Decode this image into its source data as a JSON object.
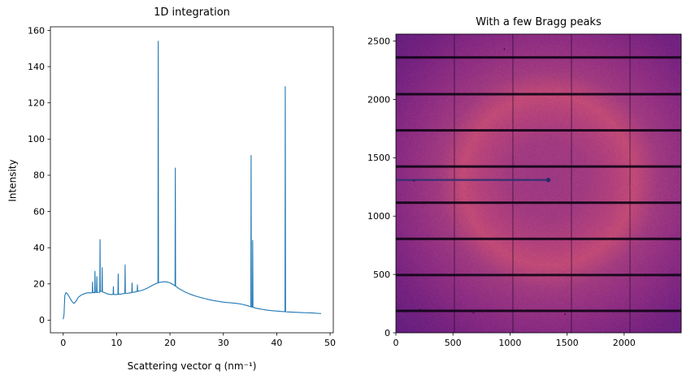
{
  "figure": {
    "background": "#ffffff"
  },
  "chart_data": [
    {
      "type": "line",
      "title": "1D integration",
      "xlabel": "Scattering vector q (nm⁻¹)",
      "ylabel": "Intensity",
      "xlim": [
        -2.4,
        50.6
      ],
      "ylim": [
        -7,
        162
      ],
      "xticks": [
        0,
        10,
        20,
        30,
        40,
        50
      ],
      "yticks": [
        0,
        20,
        40,
        60,
        80,
        100,
        120,
        140,
        160
      ],
      "grid": false,
      "line_color": "#1f77b4",
      "points": [
        [
          0.0,
          0.5
        ],
        [
          0.15,
          3
        ],
        [
          0.3,
          13.5
        ],
        [
          0.5,
          15.2
        ],
        [
          0.8,
          14.5
        ],
        [
          1.2,
          12.5
        ],
        [
          1.6,
          10.5
        ],
        [
          2.0,
          9.2
        ],
        [
          2.4,
          10.5
        ],
        [
          2.8,
          12.5
        ],
        [
          3.2,
          13.5
        ],
        [
          3.6,
          14.2
        ],
        [
          4.0,
          14.6
        ],
        [
          4.4,
          15.0
        ],
        [
          4.8,
          15.1
        ],
        [
          5.2,
          15.0
        ],
        [
          5.45,
          15.2
        ],
        [
          5.5,
          21
        ],
        [
          5.55,
          15.2
        ],
        [
          5.9,
          15.1
        ],
        [
          5.95,
          27
        ],
        [
          6.0,
          15.3
        ],
        [
          6.25,
          15.4
        ],
        [
          6.3,
          24
        ],
        [
          6.35,
          15.2
        ],
        [
          6.6,
          15.3
        ],
        [
          6.85,
          15.4
        ],
        [
          6.9,
          44.5
        ],
        [
          6.95,
          15.8
        ],
        [
          7.25,
          16.0
        ],
        [
          7.3,
          29
        ],
        [
          7.35,
          15.6
        ],
        [
          7.6,
          15.3
        ],
        [
          7.9,
          15.0
        ],
        [
          8.2,
          14.6
        ],
        [
          8.5,
          14.3
        ],
        [
          8.8,
          14.2
        ],
        [
          9.1,
          14.1
        ],
        [
          9.35,
          14.2
        ],
        [
          9.4,
          18.5
        ],
        [
          9.45,
          14.2
        ],
        [
          9.8,
          14.1
        ],
        [
          10.25,
          14.2
        ],
        [
          10.3,
          25.5
        ],
        [
          10.35,
          14.3
        ],
        [
          10.7,
          14.3
        ],
        [
          11.0,
          14.5
        ],
        [
          11.3,
          14.6
        ],
        [
          11.55,
          14.8
        ],
        [
          11.6,
          30.5
        ],
        [
          11.65,
          14.9
        ],
        [
          12.0,
          14.8
        ],
        [
          12.4,
          15.0
        ],
        [
          12.85,
          15.2
        ],
        [
          12.9,
          20.5
        ],
        [
          12.95,
          15.3
        ],
        [
          13.4,
          15.5
        ],
        [
          13.85,
          15.8
        ],
        [
          13.9,
          19.5
        ],
        [
          13.95,
          15.9
        ],
        [
          14.4,
          16.2
        ],
        [
          14.9,
          16.6
        ],
        [
          15.4,
          17.2
        ],
        [
          15.9,
          17.9
        ],
        [
          16.4,
          18.7
        ],
        [
          16.9,
          19.5
        ],
        [
          17.4,
          20.2
        ],
        [
          17.75,
          20.6
        ],
        [
          17.8,
          154
        ],
        [
          17.85,
          20.7
        ],
        [
          18.2,
          20.9
        ],
        [
          18.6,
          21.1
        ],
        [
          19.0,
          21.2
        ],
        [
          19.4,
          21.1
        ],
        [
          19.8,
          20.8
        ],
        [
          20.2,
          20.3
        ],
        [
          20.6,
          19.6
        ],
        [
          20.95,
          18.9
        ],
        [
          21.0,
          84
        ],
        [
          21.05,
          18.8
        ],
        [
          21.4,
          18.0
        ],
        [
          21.8,
          17.2
        ],
        [
          22.3,
          16.4
        ],
        [
          22.8,
          15.6
        ],
        [
          23.4,
          14.8
        ],
        [
          24.0,
          14.1
        ],
        [
          24.8,
          13.3
        ],
        [
          25.6,
          12.6
        ],
        [
          26.4,
          12.0
        ],
        [
          27.2,
          11.4
        ],
        [
          28.0,
          10.9
        ],
        [
          28.8,
          10.5
        ],
        [
          29.6,
          10.1
        ],
        [
          30.4,
          9.8
        ],
        [
          31.2,
          9.6
        ],
        [
          32.0,
          9.4
        ],
        [
          32.8,
          9.1
        ],
        [
          33.6,
          8.7
        ],
        [
          34.4,
          8.1
        ],
        [
          34.9,
          7.6
        ],
        [
          35.15,
          7.4
        ],
        [
          35.2,
          91
        ],
        [
          35.25,
          7.3
        ],
        [
          35.45,
          7.2
        ],
        [
          35.5,
          44
        ],
        [
          35.55,
          7.1
        ],
        [
          36.0,
          6.7
        ],
        [
          36.6,
          6.3
        ],
        [
          37.2,
          6.0
        ],
        [
          37.8,
          5.7
        ],
        [
          38.5,
          5.4
        ],
        [
          39.2,
          5.2
        ],
        [
          40.0,
          5.0
        ],
        [
          40.8,
          4.8
        ],
        [
          41.55,
          4.7
        ],
        [
          41.6,
          129
        ],
        [
          41.65,
          4.6
        ],
        [
          42.2,
          4.5
        ],
        [
          43.0,
          4.4
        ],
        [
          43.8,
          4.3
        ],
        [
          44.6,
          4.2
        ],
        [
          45.4,
          4.1
        ],
        [
          46.2,
          4.0
        ],
        [
          47.0,
          3.9
        ],
        [
          47.8,
          3.7
        ],
        [
          48.3,
          3.6
        ]
      ]
    },
    {
      "type": "heatmap",
      "title": "With a few Bragg peaks",
      "xlim": [
        0,
        2500
      ],
      "ylim": [
        0,
        2560
      ],
      "xticks": [
        0,
        500,
        1000,
        1500,
        2000
      ],
      "yticks": [
        0,
        500,
        1000,
        1500,
        2000,
        2500
      ],
      "colormap": "magma",
      "center_color": "#9c3883",
      "inner_color": "#a23a80",
      "ring_color": "#c14a76",
      "mid_color": "#a03a80",
      "outer_color": "#8f2e82",
      "edge_color": "#611e7e",
      "ring_radius": 760,
      "beam_center": [
        1335,
        1310
      ],
      "gap_line_color": "rgba(16,4,22,0.92)",
      "module_gap_rows": [
        188,
        495,
        805,
        1115,
        1425,
        1735,
        2045,
        2360
      ],
      "module_gap_cols": [
        512,
        1025,
        1538,
        2051
      ],
      "beamstop_arm": {
        "y": 1310,
        "x_start": 0,
        "x_end": 1340,
        "color": "rgba(46,48,112,0.85)",
        "dot_color": "#2c2a66"
      },
      "speckles": [
        [
          210,
          200
        ],
        [
          680,
          170
        ],
        [
          1480,
          160
        ],
        [
          2290,
          185
        ],
        [
          160,
          1300
        ],
        [
          950,
          2430
        ]
      ]
    }
  ]
}
